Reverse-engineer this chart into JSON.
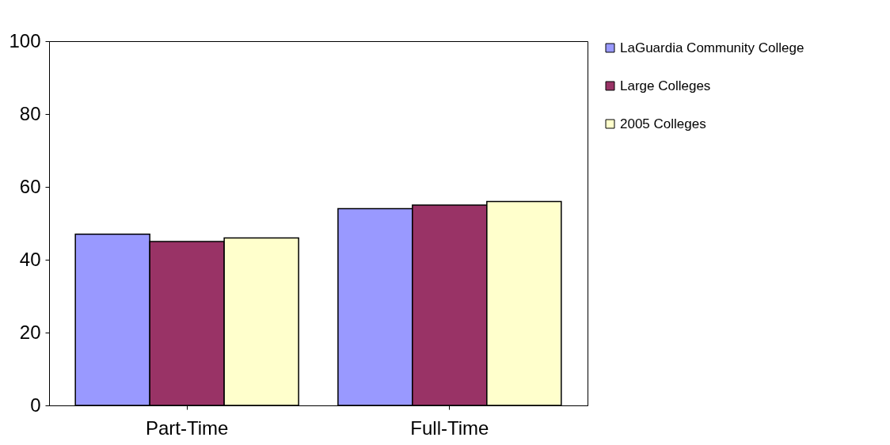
{
  "chart_data": {
    "type": "bar",
    "categories": [
      "Part-Time",
      "Full-Time"
    ],
    "series": [
      {
        "name": "LaGuardia Community College",
        "color": "#9999ff",
        "values": [
          47,
          54
        ]
      },
      {
        "name": "Large  Colleges",
        "color": "#993366",
        "values": [
          45,
          55
        ]
      },
      {
        "name": "2005 Colleges",
        "color": "#ffffcc",
        "values": [
          46,
          56
        ]
      }
    ],
    "ylim": [
      0,
      100
    ],
    "yticks": [
      0,
      20,
      40,
      60,
      80,
      100
    ],
    "grid": false,
    "legend": "right"
  }
}
